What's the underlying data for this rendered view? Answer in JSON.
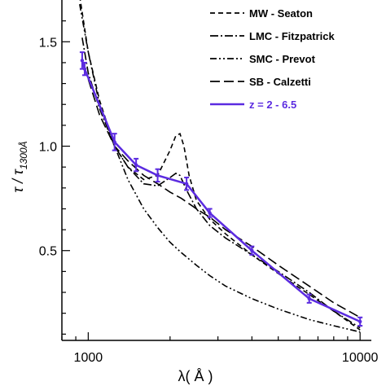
{
  "chart_data": {
    "type": "line",
    "title": "",
    "xlabel": "λ( Å )",
    "ylabel_main": "τ / τ",
    "ylabel_sub": "1300Å",
    "xscale": "log",
    "xlim": [
      800,
      11000
    ],
    "ylim": [
      0.07,
      1.7
    ],
    "xticks": [
      {
        "value": 1000,
        "label": "1000"
      },
      {
        "value": 10000,
        "label": "10000"
      }
    ],
    "yticks": [
      {
        "value": 0.5,
        "label": "0.5"
      },
      {
        "value": 1.0,
        "label": "1.0"
      },
      {
        "value": 1.5,
        "label": "1.5"
      }
    ],
    "grid": false,
    "legend_position": "top-right",
    "series": [
      {
        "name": "MW - Seaton",
        "style": "dashed",
        "color": "#000000",
        "x": [
          930,
          1000,
          1100,
          1250,
          1400,
          1600,
          1800,
          2000,
          2100,
          2175,
          2250,
          2350,
          2500,
          2800,
          3200,
          4000,
          5000,
          6500,
          8000,
          10000
        ],
        "y": [
          1.72,
          1.45,
          1.22,
          1.0,
          0.9,
          0.84,
          0.86,
          0.98,
          1.05,
          1.06,
          1.0,
          0.86,
          0.74,
          0.65,
          0.58,
          0.48,
          0.39,
          0.29,
          0.21,
          0.12
        ]
      },
      {
        "name": "LMC - Fitzpatrick",
        "style": "dash-dot",
        "color": "#000000",
        "x": [
          950,
          1000,
          1100,
          1250,
          1400,
          1600,
          1800,
          2000,
          2100,
          2175,
          2300,
          2500,
          2800,
          3200,
          4000,
          5000,
          6500,
          8000,
          10000
        ],
        "y": [
          1.52,
          1.35,
          1.18,
          1.0,
          0.9,
          0.82,
          0.81,
          0.85,
          0.87,
          0.86,
          0.79,
          0.7,
          0.62,
          0.56,
          0.48,
          0.4,
          0.3,
          0.21,
          0.13
        ]
      },
      {
        "name": "SMC - Prevot",
        "style": "dash-dot-dot",
        "color": "#000000",
        "x": [
          930,
          1000,
          1100,
          1250,
          1400,
          1600,
          1800,
          2000,
          2200,
          2500,
          2800,
          3200,
          4000,
          5000,
          6500,
          8000,
          10000
        ],
        "y": [
          1.68,
          1.45,
          1.2,
          1.0,
          0.84,
          0.7,
          0.61,
          0.54,
          0.49,
          0.43,
          0.38,
          0.33,
          0.27,
          0.22,
          0.17,
          0.14,
          0.11
        ]
      },
      {
        "name": "SB - Calzetti",
        "style": "long-dash",
        "color": "#000000",
        "x": [
          1000,
          1100,
          1250,
          1400,
          1600,
          1800,
          2000,
          2200,
          2500,
          2800,
          3200,
          4000,
          5000,
          6500,
          8000,
          10000
        ],
        "y": [
          1.32,
          1.15,
          1.0,
          0.93,
          0.86,
          0.82,
          0.78,
          0.75,
          0.7,
          0.66,
          0.6,
          0.52,
          0.43,
          0.33,
          0.25,
          0.18
        ]
      },
      {
        "name": "z = 2 - 6.5",
        "style": "solid",
        "color": "#5b2be0",
        "x": [
          950,
          970,
          1250,
          1500,
          1800,
          2300,
          2800,
          4000,
          6500,
          10000
        ],
        "y": [
          1.41,
          1.37,
          1.02,
          0.91,
          0.86,
          0.82,
          0.68,
          0.5,
          0.27,
          0.16
        ],
        "err": [
          0.04,
          0.03,
          0.04,
          0.03,
          0.03,
          0.03,
          0.02,
          0.02,
          0.02,
          0.02
        ]
      }
    ]
  }
}
